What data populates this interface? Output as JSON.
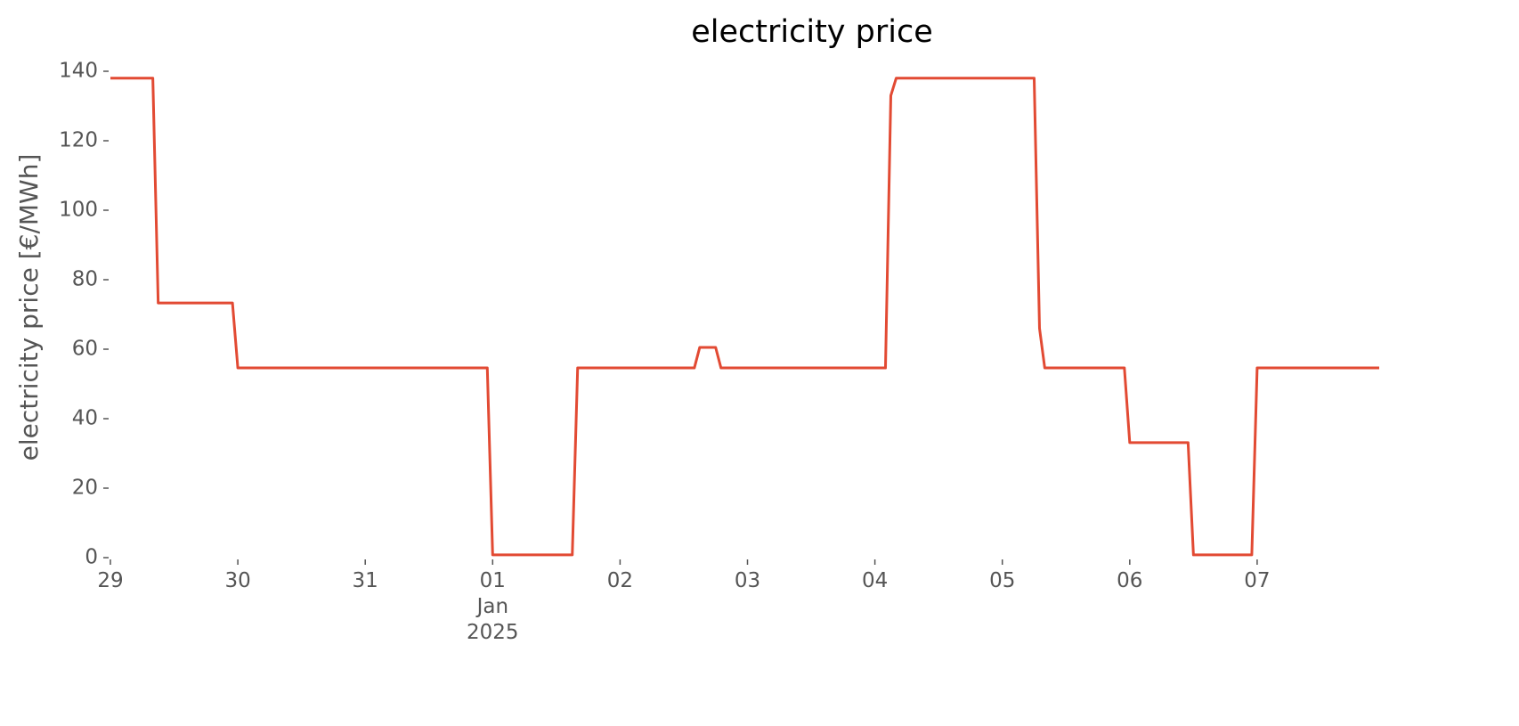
{
  "chart_data": {
    "type": "line",
    "title": "electricity price",
    "ylabel": "electricity price [€/MWh]",
    "x": [
      0,
      0.333,
      0.375,
      0.958,
      1.0,
      2.958,
      3.0,
      3.625,
      3.667,
      4.583,
      4.625,
      4.75,
      4.792,
      6.083,
      6.125,
      6.167,
      7.25,
      7.292,
      7.333,
      7.958,
      8.0,
      8.458,
      8.5,
      8.958,
      9.0,
      9.958
    ],
    "series": [
      {
        "name": "electricity price",
        "color": "#E24A33",
        "values": [
          138,
          138,
          73.3,
          73.3,
          54.6,
          54.6,
          0.8,
          0.8,
          54.6,
          54.6,
          60.5,
          60.5,
          54.6,
          54.6,
          133,
          138,
          138,
          66,
          54.6,
          54.6,
          33.1,
          33.1,
          0.8,
          0.8,
          54.6,
          54.6
        ]
      }
    ],
    "xlim": [
      0,
      9.958
    ],
    "xticks": [
      {
        "value": 0,
        "label": "29"
      },
      {
        "value": 1,
        "label": "30"
      },
      {
        "value": 2,
        "label": "31"
      },
      {
        "value": 3,
        "label": "01\nJan\n2025"
      },
      {
        "value": 4,
        "label": "02"
      },
      {
        "value": 5,
        "label": "03"
      },
      {
        "value": 6,
        "label": "04"
      },
      {
        "value": 7,
        "label": "05"
      },
      {
        "value": 8,
        "label": "06"
      },
      {
        "value": 9,
        "label": "07"
      }
    ],
    "ylim": [
      0,
      140
    ],
    "yticks": [
      0,
      20,
      40,
      60,
      80,
      100,
      120,
      140
    ],
    "grid": false
  }
}
